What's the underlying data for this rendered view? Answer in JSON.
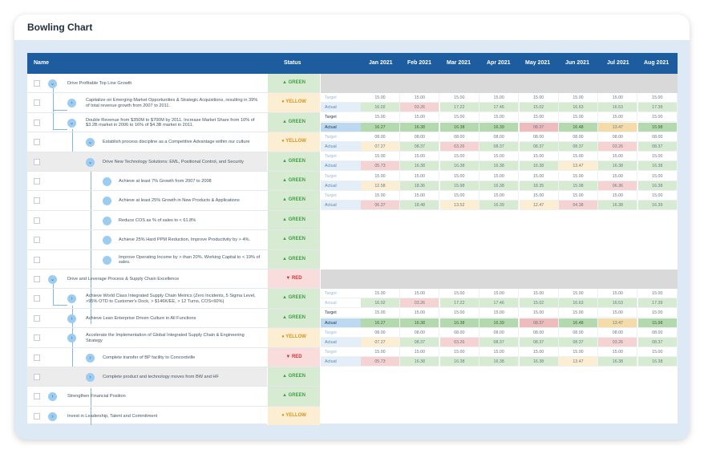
{
  "card": {
    "title": "Bowling Chart"
  },
  "header": {
    "name": "Name",
    "status": "Status",
    "months": [
      "Jan 2021",
      "Feb 2021",
      "Mar 2021",
      "Apr 2021",
      "May 2021",
      "Jun 2021",
      "Jul 2021",
      "Aug 2021"
    ]
  },
  "rows": [
    {
      "label": "Drive Profitable Top Line Growth",
      "status": "GREEN"
    },
    {
      "label": "Capitalize on Emerging Market Opportunities & Strategic Acquisitions, resulting in 39% of total revenue growth from 2007 to 2011.",
      "status": "YELLOW"
    },
    {
      "label": "Double Revenue from $350M to $700M by 2011.  Increase Market Share from 10% of $3.2B market in 2006 to 16% of $4.3B market in 2011.",
      "status": "GREEN"
    },
    {
      "label": "Establish process discipline as a Competitive Advantage within our culture",
      "status": "YELLOW"
    },
    {
      "label": "Drive New Technology Solutions: EML, Positional Control, and Security",
      "status": "GREEN"
    },
    {
      "label": "Achieve at least 7% Growth from 2007 to 2008",
      "status": "GREEN"
    },
    {
      "label": "Achieve at least 25% Growth in New Products & Applications",
      "status": "GREEN"
    },
    {
      "label": "Reduce COS as % of sales to < 61.8%",
      "status": "GREEN"
    },
    {
      "label": "Achieve 25% Hard PPM Reduction, Improve Productivity by > 4%.",
      "status": "GREEN"
    },
    {
      "label": "Improve Operating Income by > than 20%.  Working Capital to < 19% of sales.",
      "status": "GREEN"
    },
    {
      "label": "Drive and Leverage Process & Supply Chain Excellence",
      "status": "RED"
    },
    {
      "label": "Achieve World Class Integrated Supply Chain Metrics (Zero Incidents, 5 Sigma Level, >95% OTD to Customer's Dock, > $146K/EE, > 12 Turns, COS<60%)",
      "status": "GREEN"
    },
    {
      "label": "Achieve Lean Enterprise Driven Culture in All Functions",
      "status": "GREEN"
    },
    {
      "label": "Accelerate the Implementation of Global Integrated Supply Chain & Engineering Strategy",
      "status": "YELLOW"
    },
    {
      "label": "Complete transfer of BP facility to Concordville",
      "status": "RED"
    },
    {
      "label": "Complete product and technology moves from BW and HF",
      "status": "GREEN"
    },
    {
      "label": "Strengthen Financial Position",
      "status": "GREEN"
    },
    {
      "label": "Invest in Leadership, Talent and Commitment",
      "status": "YELLOW"
    }
  ],
  "grid_blocks": [
    {
      "rows": [
        {
          "label": "Target",
          "type": "target",
          "values": [
            "15.00",
            "15.00",
            "15.00",
            "15.00",
            "15.00",
            "15.00",
            "15.00",
            "15.00"
          ],
          "colors": [
            "",
            "",
            "",
            "",
            "",
            "",
            "",
            ""
          ]
        },
        {
          "label": "Actual",
          "type": "actual",
          "values": [
            "16.02",
            "03.26",
            "17.22",
            "17.46",
            "15.02",
            "16.63",
            "16.53",
            "17.39"
          ],
          "colors": [
            "g",
            "r",
            "g",
            "g",
            "g",
            "g",
            "g",
            "g"
          ]
        },
        {
          "label": "Target",
          "type": "target-strong",
          "values": [
            "15.00",
            "15.00",
            "15.00",
            "15.00",
            "15.00",
            "15.00",
            "15.00",
            "15.00"
          ],
          "colors": [
            "",
            "",
            "",
            "",
            "",
            "",
            "",
            ""
          ]
        },
        {
          "label": "Actual",
          "type": "actual-strong",
          "values": [
            "16.27",
            "16.38",
            "16.38",
            "16.39",
            "08.37",
            "16.48",
            "13.47",
            "15.98"
          ],
          "colors": [
            "G",
            "G",
            "G",
            "G",
            "R",
            "G",
            "Y",
            "G"
          ]
        },
        {
          "label": "Target",
          "type": "target",
          "values": [
            "08.00",
            "08.00",
            "08.00",
            "08.00",
            "08.00",
            "08.00",
            "08.00",
            "08.00"
          ],
          "colors": [
            "",
            "",
            "",
            "",
            "",
            "",
            "",
            ""
          ]
        },
        {
          "label": "Actual",
          "type": "actual",
          "values": [
            "07.27",
            "08.37",
            "03.26",
            "08.37",
            "08.37",
            "08.37",
            "03.26",
            "08.37"
          ],
          "colors": [
            "y",
            "g",
            "r",
            "g",
            "g",
            "g",
            "r",
            "g"
          ]
        },
        {
          "label": "Target",
          "type": "target",
          "values": [
            "15.00",
            "15.00",
            "15.00",
            "15.00",
            "15.00",
            "15.00",
            "15.00",
            "15.00"
          ],
          "colors": [
            "",
            "",
            "",
            "",
            "",
            "",
            "",
            ""
          ]
        },
        {
          "label": "Actual",
          "type": "actual",
          "values": [
            "05.73",
            "16.38",
            "16.38",
            "16.38",
            "16.38",
            "13.47",
            "16.38",
            "16.38"
          ],
          "colors": [
            "r",
            "g",
            "g",
            "g",
            "g",
            "y",
            "g",
            "g"
          ]
        },
        {
          "label": "Target",
          "type": "target",
          "values": [
            "15.00",
            "15.00",
            "15.00",
            "15.00",
            "15.00",
            "15.00",
            "15.00",
            "15.00"
          ],
          "colors": [
            "",
            "",
            "",
            "",
            "",
            "",
            "",
            ""
          ]
        },
        {
          "label": "Actual",
          "type": "actual",
          "values": [
            "12.58",
            "18.36",
            "15.98",
            "16.38",
            "18.35",
            "15.98",
            "06.36",
            "16.38"
          ],
          "colors": [
            "y",
            "g",
            "g",
            "g",
            "g",
            "g",
            "r",
            "g"
          ]
        },
        {
          "label": "Target",
          "type": "target",
          "values": [
            "15.00",
            "15.00",
            "15.00",
            "15.00",
            "15.00",
            "15.00",
            "15.00",
            "15.00"
          ],
          "colors": [
            "",
            "",
            "",
            "",
            "",
            "",
            "",
            ""
          ]
        },
        {
          "label": "Actual",
          "type": "actual",
          "values": [
            "06.37",
            "18.48",
            "13.52",
            "16.39",
            "12.47",
            "04.38",
            "16.38",
            "16.39"
          ],
          "colors": [
            "r",
            "g",
            "y",
            "g",
            "y",
            "r",
            "g",
            "g"
          ]
        }
      ]
    },
    {
      "rows": [
        {
          "label": "Target",
          "type": "target",
          "values": [
            "15.00",
            "15.00",
            "15.00",
            "15.00",
            "15.00",
            "15.00",
            "15.00",
            "15.00"
          ],
          "colors": [
            "",
            "",
            "",
            "",
            "",
            "",
            "",
            ""
          ]
        },
        {
          "label": "Actual",
          "type": "plain",
          "values": [
            "16.02",
            "03.26",
            "17.22",
            "17.46",
            "15.02",
            "16.63",
            "16.53",
            "17.39"
          ],
          "colors": [
            "g",
            "r",
            "g",
            "g",
            "g",
            "g",
            "g",
            "g"
          ]
        },
        {
          "label": "Target",
          "type": "target-strong",
          "values": [
            "15.00",
            "15.00",
            "15.00",
            "15.00",
            "15.00",
            "15.00",
            "15.00",
            "15.00"
          ],
          "colors": [
            "",
            "",
            "",
            "",
            "",
            "",
            "",
            ""
          ]
        },
        {
          "label": "Actual",
          "type": "actual-strong",
          "values": [
            "16.27",
            "16.38",
            "16.38",
            "16.39",
            "08.37",
            "16.48",
            "13.47",
            "15.98"
          ],
          "colors": [
            "G",
            "G",
            "G",
            "G",
            "R",
            "G",
            "Y",
            "G"
          ]
        },
        {
          "label": "Target",
          "type": "target",
          "values": [
            "08.00",
            "08.00",
            "08.00",
            "08.00",
            "08.00",
            "08.00",
            "08.00",
            "08.00"
          ],
          "colors": [
            "",
            "",
            "",
            "",
            "",
            "",
            "",
            ""
          ]
        },
        {
          "label": "Actual",
          "type": "actual",
          "values": [
            "07.27",
            "08.37",
            "03.26",
            "08.37",
            "08.37",
            "08.37",
            "03.26",
            "08.37"
          ],
          "colors": [
            "y",
            "g",
            "r",
            "g",
            "g",
            "g",
            "r",
            "g"
          ]
        },
        {
          "label": "Target",
          "type": "target",
          "values": [
            "15.00",
            "15.00",
            "15.00",
            "15.00",
            "15.00",
            "15.00",
            "15.00",
            "15.00"
          ],
          "colors": [
            "",
            "",
            "",
            "",
            "",
            "",
            "",
            ""
          ]
        },
        {
          "label": "Actual",
          "type": "actual",
          "values": [
            "05.73",
            "16.38",
            "16.38",
            "16.38",
            "16.38",
            "13.47",
            "16.38",
            "16.38"
          ],
          "colors": [
            "r",
            "g",
            "g",
            "g",
            "g",
            "y",
            "g",
            "g"
          ]
        }
      ]
    }
  ]
}
